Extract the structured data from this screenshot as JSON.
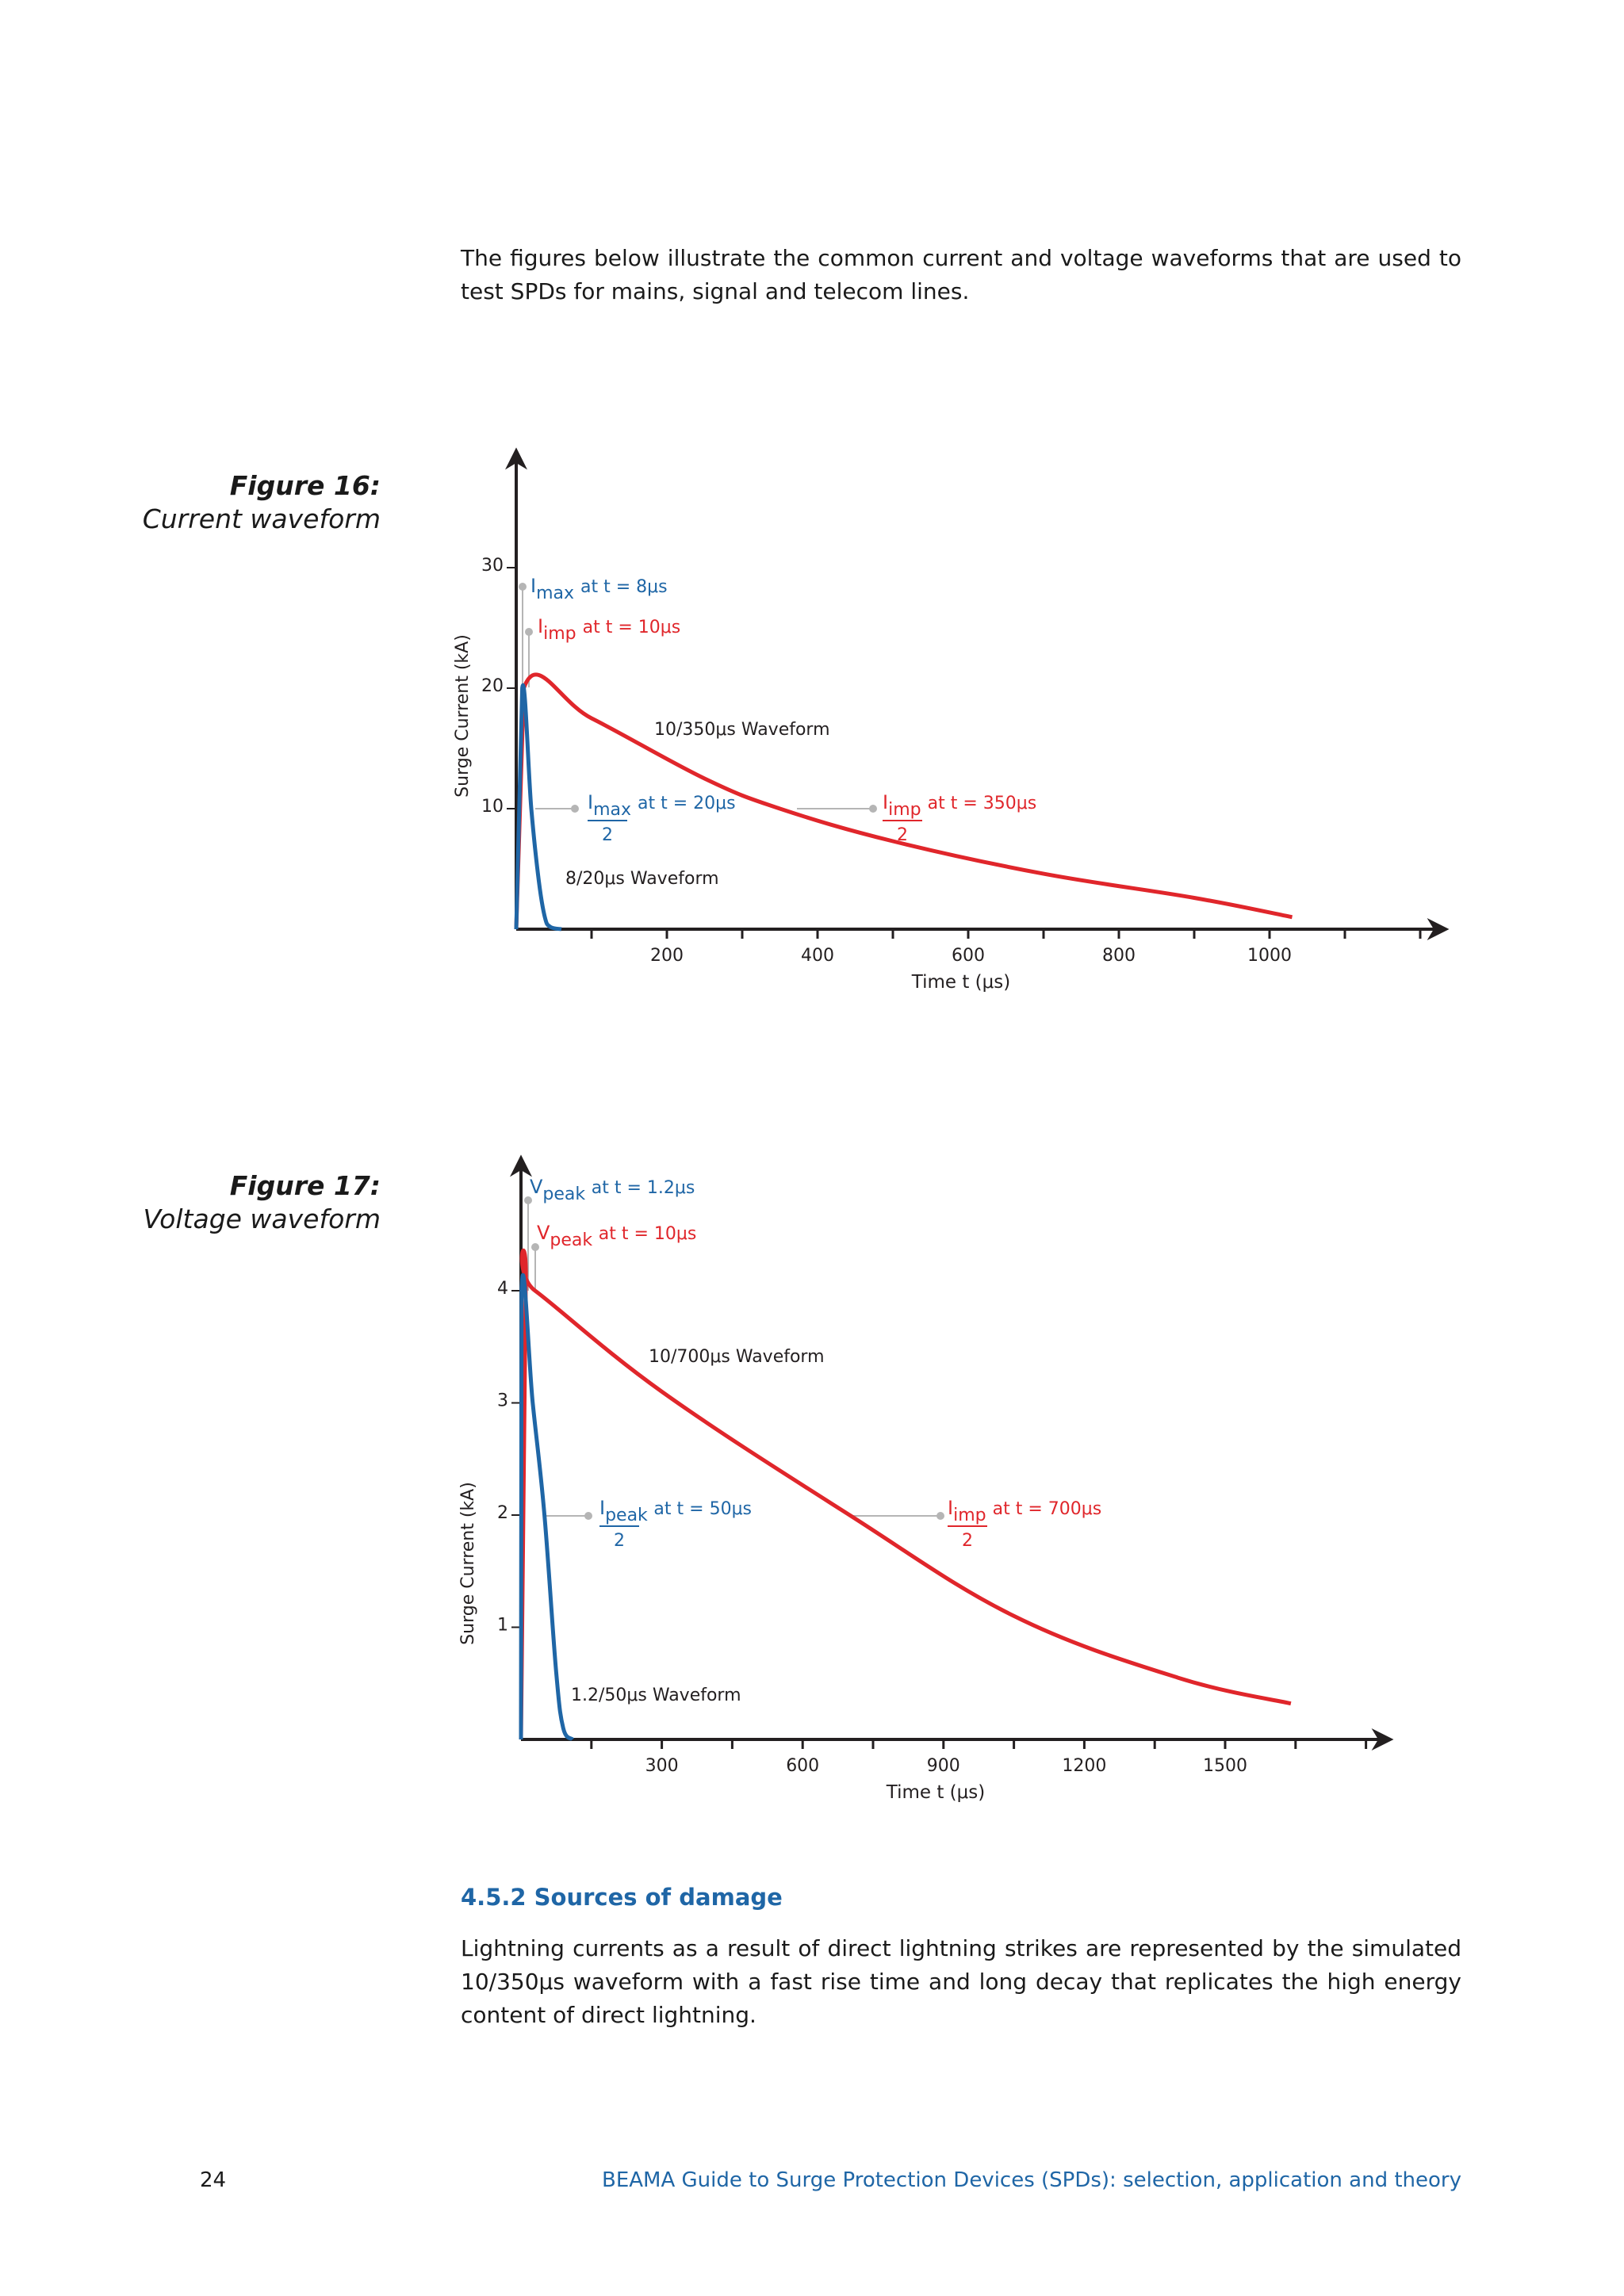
{
  "intro_text": "The figures below illustrate the common current and voltage waveforms that are used to test SPDs for mains, signal and telecom lines.",
  "figure16": {
    "number": "Figure 16:",
    "caption": "Current waveform",
    "ylabel": "Surge Current (kA)",
    "xlabel": "Time t (μs)",
    "y_ticks": [
      "30",
      "20",
      "10"
    ],
    "x_ticks": [
      "200",
      "400",
      "600",
      "800",
      "1000"
    ],
    "ann_imax": {
      "sym": "I",
      "sub": "max",
      "text": "at t = 8μs"
    },
    "ann_imp": {
      "sym": "I",
      "sub": "imp",
      "text": "at t = 10μs"
    },
    "ann_imax_half": {
      "sym": "I",
      "sub": "max",
      "text": "at t = 20μs",
      "den": "2"
    },
    "ann_imp_half": {
      "sym": "I",
      "sub": "imp",
      "text": "at t = 350μs",
      "den": "2"
    },
    "label_red": "10/350μs Waveform",
    "label_blue": "8/20μs Waveform"
  },
  "figure17": {
    "number": "Figure 17:",
    "caption": "Voltage waveform",
    "ylabel": "Surge Current (kA)",
    "xlabel": "Time t (μs)",
    "y_ticks": [
      "4",
      "3",
      "2",
      "1"
    ],
    "x_ticks": [
      "300",
      "600",
      "900",
      "1200",
      "1500"
    ],
    "ann_vpeak_blue": {
      "sym": "V",
      "sub": "peak",
      "text": "at t = 1.2μs"
    },
    "ann_vpeak_red": {
      "sym": "V",
      "sub": "peak",
      "text": "at t = 10μs"
    },
    "ann_ipeak_half": {
      "sym": "I",
      "sub": "peak",
      "text": "at t = 50μs",
      "den": "2"
    },
    "ann_imp_half": {
      "sym": "I",
      "sub": "imp",
      "text": "at t = 700μs",
      "den": "2"
    },
    "label_red": "10/700μs Waveform",
    "label_blue": "1.2/50μs Waveform"
  },
  "chart_data": [
    {
      "type": "line",
      "title": "Figure 16: Current waveform",
      "xlabel": "Time t (μs)",
      "ylabel": "Surge Current (kA)",
      "xlim": [
        0,
        1200
      ],
      "ylim": [
        0,
        40
      ],
      "x_ticks": [
        200,
        400,
        600,
        800,
        1000
      ],
      "y_ticks": [
        10,
        20,
        30
      ],
      "series": [
        {
          "name": "10/350μs Waveform",
          "color": "#e0262b",
          "x": [
            0,
            10,
            100,
            250,
            350,
            500,
            700,
            900,
            1030
          ],
          "y": [
            0,
            20,
            17.5,
            12.5,
            10,
            7.3,
            4.6,
            2.6,
            1.0
          ]
        },
        {
          "name": "8/20μs Waveform",
          "color": "#1f66a6",
          "x": [
            0,
            8,
            20,
            30,
            38,
            45,
            60
          ],
          "y": [
            0,
            20,
            10,
            4,
            1,
            0.2,
            0
          ]
        }
      ]
    },
    {
      "type": "line",
      "title": "Figure 17: Voltage waveform",
      "xlabel": "Time t (μs)",
      "ylabel": "Surge Current (kA)",
      "xlim": [
        0,
        1850
      ],
      "ylim": [
        0,
        5
      ],
      "x_ticks": [
        300,
        600,
        900,
        1200,
        1500
      ],
      "y_ticks": [
        1,
        2,
        3,
        4
      ],
      "series": [
        {
          "name": "10/700μs Waveform",
          "color": "#e0262b",
          "x": [
            0,
            10,
            30,
            300,
            700,
            1050,
            1400,
            1640
          ],
          "y": [
            0,
            4,
            4,
            3.1,
            2,
            1.1,
            0.55,
            0.32
          ]
        },
        {
          "name": "1.2/50μs Waveform",
          "color": "#1f66a6",
          "x": [
            0,
            1.2,
            25,
            50,
            75,
            90,
            110
          ],
          "y": [
            0,
            4,
            3,
            2,
            0.6,
            0.1,
            0
          ]
        }
      ]
    }
  ],
  "section_heading": "4.5.2 Sources of damage",
  "section_body": "Lightning currents as a result of direct lightning strikes are represented by the simulated 10/350μs waveform with a fast rise time and long decay that replicates the high energy content of direct lightning.",
  "footer": {
    "page_number": "24",
    "title": "BEAMA Guide to Surge Protection Devices (SPDs): selection, application and theory"
  }
}
